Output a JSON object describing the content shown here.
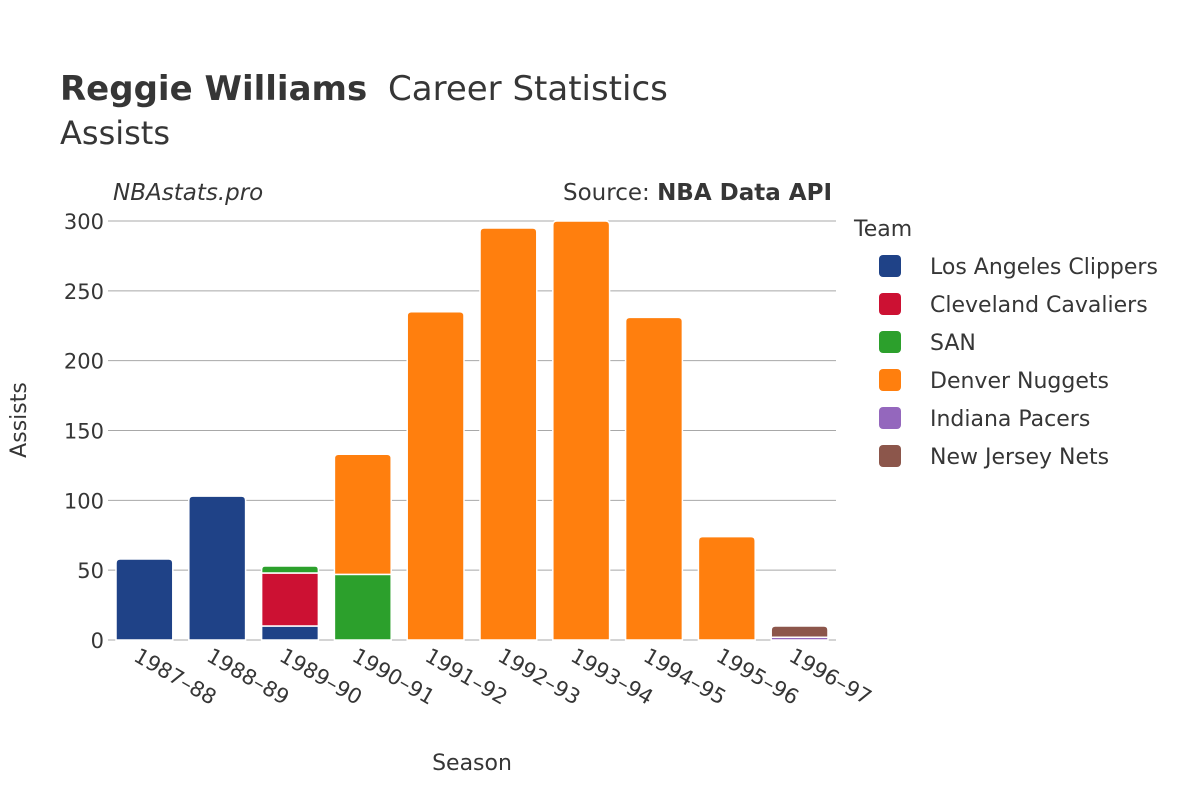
{
  "header": {
    "player": "Reggie Williams",
    "title_rest": "Career Statistics",
    "subtitle": "Assists",
    "watermark": "NBAstats.pro",
    "source_label": "Source: ",
    "source_name": "NBA Data API"
  },
  "chart_data": {
    "type": "bar",
    "stacked": true,
    "xlabel": "Season",
    "ylabel": "Assists",
    "ylim": [
      0,
      300
    ],
    "yticks": [
      0,
      50,
      100,
      150,
      200,
      250,
      300
    ],
    "grid": true,
    "legend_title": "Team",
    "legend_placement": "right",
    "categories": [
      "1987–88",
      "1988–89",
      "1989–90",
      "1990–91",
      "1991–92",
      "1992–93",
      "1993–94",
      "1994–95",
      "1995–96",
      "1996–97"
    ],
    "series": [
      {
        "name": "Los Angeles Clippers",
        "color": "#1f4287",
        "values": [
          58,
          103,
          10,
          0,
          0,
          0,
          0,
          0,
          0,
          0
        ]
      },
      {
        "name": "Cleveland Cavaliers",
        "color": "#cc1133",
        "values": [
          0,
          0,
          38,
          0,
          0,
          0,
          0,
          0,
          0,
          0
        ]
      },
      {
        "name": "SAN",
        "color": "#2ca02c",
        "values": [
          0,
          0,
          5,
          47,
          0,
          0,
          0,
          0,
          0,
          0
        ]
      },
      {
        "name": "Denver Nuggets",
        "color": "#ff7f0e",
        "values": [
          0,
          0,
          0,
          86,
          235,
          295,
          300,
          231,
          74,
          0
        ]
      },
      {
        "name": "Indiana Pacers",
        "color": "#9467bd",
        "values": [
          0,
          0,
          0,
          0,
          0,
          0,
          0,
          0,
          0,
          2
        ]
      },
      {
        "name": "New Jersey Nets",
        "color": "#8c564b",
        "values": [
          0,
          0,
          0,
          0,
          0,
          0,
          0,
          0,
          0,
          8
        ]
      }
    ]
  }
}
